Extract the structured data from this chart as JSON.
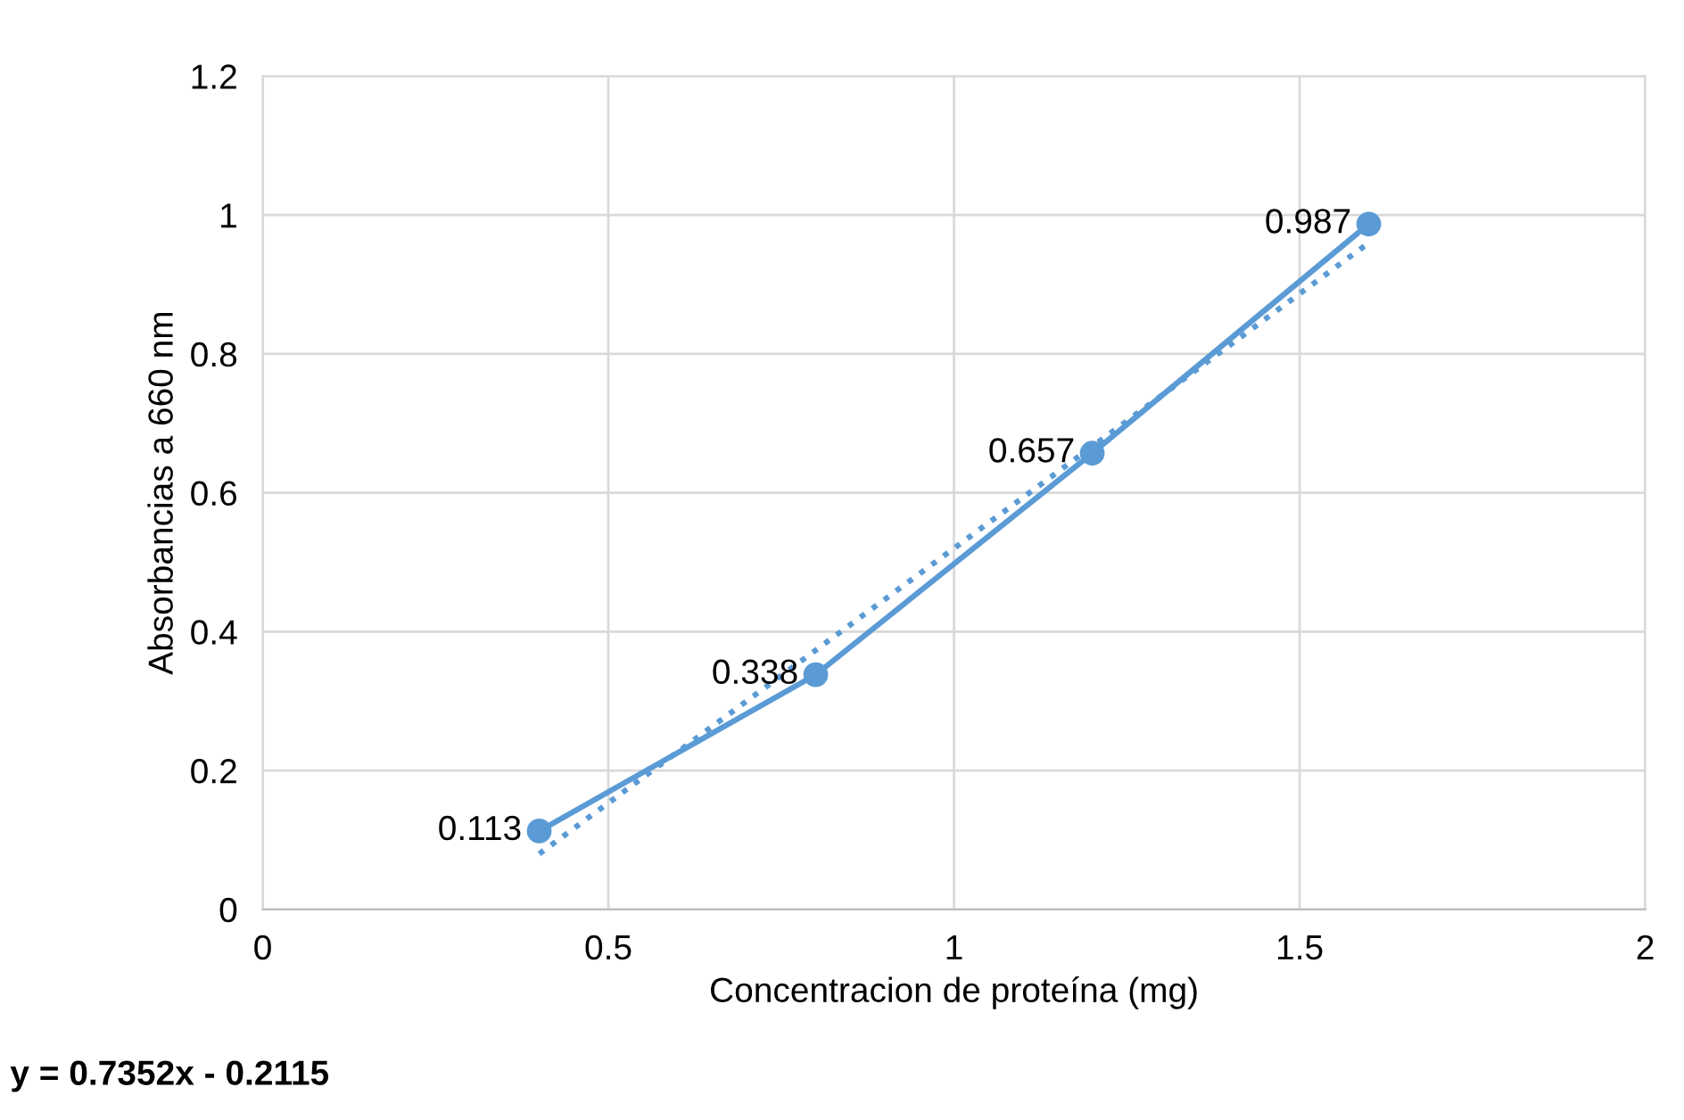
{
  "chart_data": {
    "type": "line",
    "xlabel": "Concentracion de proteína (mg)",
    "ylabel": "Absorbancias a 660 nm",
    "series": [
      {
        "color": "#5b9bd5",
        "x": [
          0.4,
          0.8,
          1.2,
          1.6
        ],
        "values": [
          0.113,
          0.338,
          0.657,
          0.987
        ],
        "marker": "circle",
        "line_style": "solid",
        "value_labels": [
          "0.113",
          "0.338",
          "0.657",
          "0.987"
        ]
      },
      {
        "color": "#5b9bd5",
        "x": [
          0.4,
          1.6
        ],
        "values": [
          0.08,
          0.96
        ],
        "marker": "none",
        "line_style": "dotted"
      }
    ],
    "xlim": [
      0,
      2
    ],
    "xticks": [
      0,
      0.5,
      1,
      1.5,
      2
    ],
    "ylim": [
      0,
      1.2
    ],
    "yticks": [
      0,
      0.2,
      0.4,
      0.6,
      0.8,
      1,
      1.2
    ],
    "grid": true,
    "annotations": [
      "y = 0.7352x - 0.2115"
    ]
  }
}
